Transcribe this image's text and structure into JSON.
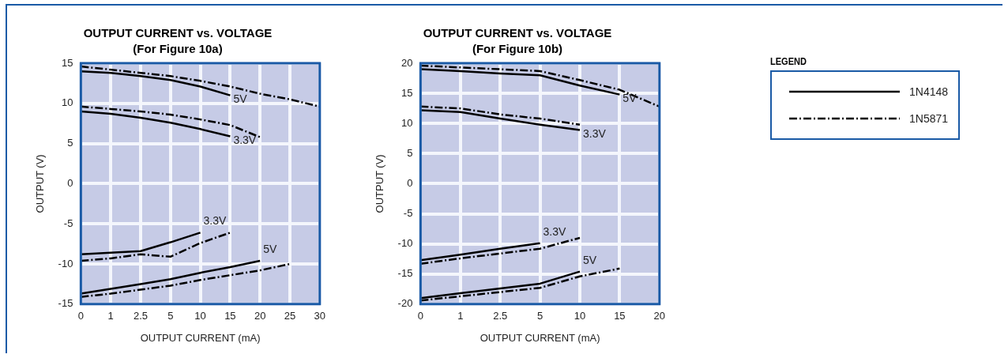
{
  "chart_data": [
    {
      "type": "line",
      "title": "OUTPUT CURRENT vs. VOLTAGE",
      "subtitle": "(For Figure 10a)",
      "xlabel": "OUTPUT CURRENT (mA)",
      "ylabel": "OUTPUT (V)",
      "categories": [
        "0",
        "1",
        "2.5",
        "5",
        "10",
        "15",
        "20",
        "25",
        "30"
      ],
      "ylim": [
        -15,
        15
      ],
      "yticks": [
        -15,
        -10,
        -5,
        0,
        5,
        10,
        15
      ],
      "grid": true,
      "marker": "none",
      "series": [
        {
          "color": "#000000",
          "line_style": "solid",
          "values": [
            14,
            13.8,
            13.4,
            12.9,
            12.1,
            11.0,
            null,
            null,
            null
          ]
        },
        {
          "color": "#000000",
          "line_style": "dashed",
          "values": [
            14.6,
            14.2,
            13.8,
            13.4,
            12.8,
            12.1,
            11.2,
            10.5,
            9.6
          ]
        },
        {
          "color": "#000000",
          "line_style": "solid",
          "values": [
            9.0,
            8.7,
            8.2,
            7.6,
            6.8,
            5.9,
            null,
            null,
            null
          ]
        },
        {
          "color": "#000000",
          "line_style": "dashed",
          "values": [
            9.6,
            9.3,
            9.0,
            8.6,
            8.0,
            7.3,
            5.8,
            null,
            null
          ]
        },
        {
          "color": "#000000",
          "line_style": "solid",
          "values": [
            -8.8,
            -8.6,
            -8.4,
            -7.3,
            -6.1,
            null,
            null,
            null,
            null
          ]
        },
        {
          "color": "#000000",
          "line_style": "dashed",
          "values": [
            -9.6,
            -9.3,
            -8.8,
            -9.1,
            -7.4,
            -6.1,
            null,
            null,
            null
          ]
        },
        {
          "color": "#000000",
          "line_style": "solid",
          "values": [
            -13.7,
            -13.1,
            -12.5,
            -11.9,
            -11.1,
            -10.4,
            -9.6,
            null,
            null
          ]
        },
        {
          "color": "#000000",
          "line_style": "dashed",
          "values": [
            -14.1,
            -13.7,
            -13.2,
            -12.7,
            -12.0,
            -11.4,
            -10.8,
            -10.0,
            null
          ]
        }
      ],
      "annotations": [
        {
          "text": "5V",
          "x": "15",
          "y": 11.0
        },
        {
          "text": "3.3V",
          "x": "15",
          "y": 5.9
        },
        {
          "text": "3.3V",
          "x": "10",
          "y": -6.1
        },
        {
          "text": "5V",
          "x": "20",
          "y": -9.6
        }
      ]
    },
    {
      "type": "line",
      "title": "OUTPUT CURRENT vs. VOLTAGE",
      "subtitle": "(For Figure 10b)",
      "xlabel": "OUTPUT CURRENT (mA)",
      "ylabel": "OUTPUT (V)",
      "categories": [
        "0",
        "1",
        "2.5",
        "5",
        "10",
        "15",
        "20"
      ],
      "ylim": [
        -20,
        20
      ],
      "yticks": [
        -20,
        -15,
        -10,
        -5,
        0,
        5,
        10,
        15,
        20
      ],
      "grid": true,
      "marker": "none",
      "legend": "right",
      "legend_title": "LEGEND",
      "series": [
        {
          "name": "1N4148",
          "color": "#000000",
          "line_style": "solid",
          "values": [
            19.0,
            18.7,
            18.3,
            18.0,
            16.3,
            14.8,
            null
          ]
        },
        {
          "name": "1N5871",
          "color": "#000000",
          "line_style": "dashed",
          "values": [
            19.6,
            19.3,
            19.0,
            18.7,
            17.2,
            15.6,
            12.8
          ]
        },
        {
          "color": "#000000",
          "line_style": "solid",
          "values": [
            12.2,
            11.9,
            10.8,
            9.8,
            8.9,
            null,
            null
          ]
        },
        {
          "color": "#000000",
          "line_style": "dashed",
          "values": [
            12.8,
            12.5,
            11.5,
            10.8,
            9.8,
            null,
            null
          ]
        },
        {
          "color": "#000000",
          "line_style": "solid",
          "values": [
            -12.7,
            -11.8,
            -10.8,
            -9.9,
            null,
            null,
            null
          ]
        },
        {
          "color": "#000000",
          "line_style": "dashed",
          "values": [
            -13.3,
            -12.4,
            -11.6,
            -10.8,
            -9.0,
            null,
            null
          ]
        },
        {
          "color": "#000000",
          "line_style": "solid",
          "values": [
            -19.0,
            -18.2,
            -17.4,
            -16.6,
            -14.6,
            null,
            null
          ]
        },
        {
          "color": "#000000",
          "line_style": "dashed",
          "values": [
            -19.4,
            -18.7,
            -18.0,
            -17.3,
            -15.4,
            -14.1,
            null
          ]
        }
      ],
      "annotations": [
        {
          "text": "5V",
          "x": "15",
          "y": 14.8
        },
        {
          "text": "3.3V",
          "x": "10",
          "y": 8.9
        },
        {
          "text": "3.3V",
          "x": "5",
          "y": -9.9
        },
        {
          "text": "5V",
          "x": "10",
          "y": -14.6
        }
      ]
    }
  ]
}
